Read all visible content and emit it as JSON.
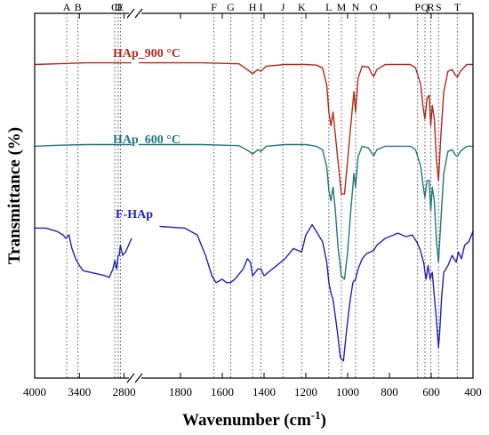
{
  "chart_data": {
    "type": "line",
    "title": "",
    "xlabel": "Wavenumber (cm",
    "xlabel_sup": "-1",
    "xlabel_close": ")",
    "ylabel": "Transmittance (%)",
    "x_axis": "reversed, broken between 2700 and 2000 cm-1",
    "x_segments": [
      {
        "from": 4000,
        "to": 2700,
        "ticks": [
          4000,
          3400,
          2800
        ],
        "tick_labels": [
          "4000",
          "3400",
          "2800"
        ]
      },
      {
        "from": 2000,
        "to": 400,
        "ticks": [
          1800,
          1600,
          1400,
          1200,
          1000,
          800,
          600,
          400
        ],
        "tick_labels": [
          "1800",
          "1600",
          "1400",
          "1200",
          "1000",
          "800",
          "600",
          "400"
        ]
      }
    ],
    "y_ticks_labeled": false,
    "grid": false,
    "legend": "inline labels above each curve",
    "bands": [
      {
        "label": "A",
        "x": 3570
      },
      {
        "label": "B",
        "x": 3420
      },
      {
        "label": "C",
        "x": 2925
      },
      {
        "label": "D",
        "x": 2880
      },
      {
        "label": "E",
        "x": 2850
      },
      {
        "label": "F",
        "x": 1640
      },
      {
        "label": "G",
        "x": 1560
      },
      {
        "label": "H",
        "x": 1455
      },
      {
        "label": "I",
        "x": 1415
      },
      {
        "label": "J",
        "x": 1310
      },
      {
        "label": "K",
        "x": 1220
      },
      {
        "label": "L",
        "x": 1090
      },
      {
        "label": "M",
        "x": 1030
      },
      {
        "label": "N",
        "x": 962
      },
      {
        "label": "O",
        "x": 875
      },
      {
        "label": "P",
        "x": 665
      },
      {
        "label": "Q",
        "x": 630
      },
      {
        "label": "R",
        "x": 602
      },
      {
        "label": "S",
        "x": 565
      },
      {
        "label": "T",
        "x": 475
      }
    ],
    "series": [
      {
        "name": "HAp_900 °C",
        "color": "#b22a1e",
        "points": [
          [
            4000,
            80
          ],
          [
            3700,
            80.2
          ],
          [
            3300,
            80.5
          ],
          [
            3000,
            80.5
          ],
          [
            2700,
            80.5
          ],
          [
            2000,
            80.5
          ],
          [
            1700,
            80.5
          ],
          [
            1520,
            80.2
          ],
          [
            1470,
            78
          ],
          [
            1455,
            77.3
          ],
          [
            1430,
            78.5
          ],
          [
            1415,
            78
          ],
          [
            1390,
            79.5
          ],
          [
            1300,
            80
          ],
          [
            1200,
            80
          ],
          [
            1150,
            79.8
          ],
          [
            1120,
            79
          ],
          [
            1100,
            74
          ],
          [
            1090,
            66
          ],
          [
            1080,
            62
          ],
          [
            1070,
            66
          ],
          [
            1060,
            60
          ],
          [
            1040,
            48
          ],
          [
            1030,
            42
          ],
          [
            1015,
            42
          ],
          [
            1000,
            52
          ],
          [
            985,
            62
          ],
          [
            970,
            72
          ],
          [
            962,
            66
          ],
          [
            950,
            76
          ],
          [
            930,
            79.5
          ],
          [
            900,
            79.2
          ],
          [
            885,
            77.3
          ],
          [
            875,
            76.5
          ],
          [
            860,
            78.5
          ],
          [
            820,
            80
          ],
          [
            700,
            80
          ],
          [
            675,
            79
          ],
          [
            650,
            74
          ],
          [
            640,
            68
          ],
          [
            630,
            64
          ],
          [
            620,
            70
          ],
          [
            610,
            71
          ],
          [
            602,
            62
          ],
          [
            595,
            68
          ],
          [
            585,
            64
          ],
          [
            575,
            52
          ],
          [
            565,
            46
          ],
          [
            555,
            58
          ],
          [
            540,
            72
          ],
          [
            520,
            78
          ],
          [
            500,
            78.5
          ],
          [
            485,
            77
          ],
          [
            475,
            76.3
          ],
          [
            460,
            78
          ],
          [
            430,
            80
          ],
          [
            400,
            80
          ]
        ]
      },
      {
        "name": "HAp_600 °C",
        "color": "#22777a",
        "points": [
          [
            4000,
            56
          ],
          [
            3700,
            56.3
          ],
          [
            3300,
            56.5
          ],
          [
            3000,
            56.5
          ],
          [
            2700,
            56.5
          ],
          [
            2000,
            56.5
          ],
          [
            1700,
            56.5
          ],
          [
            1520,
            56.2
          ],
          [
            1470,
            54.5
          ],
          [
            1455,
            53.7
          ],
          [
            1430,
            55
          ],
          [
            1415,
            54.5
          ],
          [
            1390,
            56
          ],
          [
            1300,
            56.5
          ],
          [
            1200,
            56.5
          ],
          [
            1150,
            56
          ],
          [
            1120,
            55
          ],
          [
            1100,
            50
          ],
          [
            1090,
            43
          ],
          [
            1080,
            40
          ],
          [
            1070,
            44
          ],
          [
            1060,
            38
          ],
          [
            1045,
            26
          ],
          [
            1030,
            18
          ],
          [
            1015,
            17
          ],
          [
            1000,
            25
          ],
          [
            985,
            37
          ],
          [
            970,
            48
          ],
          [
            962,
            44
          ],
          [
            950,
            53
          ],
          [
            930,
            56
          ],
          [
            900,
            55.5
          ],
          [
            885,
            54
          ],
          [
            875,
            53.2
          ],
          [
            860,
            55
          ],
          [
            820,
            56
          ],
          [
            700,
            56
          ],
          [
            675,
            55
          ],
          [
            650,
            50
          ],
          [
            640,
            45
          ],
          [
            630,
            41
          ],
          [
            620,
            46
          ],
          [
            610,
            46
          ],
          [
            602,
            37
          ],
          [
            595,
            44
          ],
          [
            585,
            40
          ],
          [
            575,
            28
          ],
          [
            565,
            22
          ],
          [
            555,
            33
          ],
          [
            540,
            48
          ],
          [
            520,
            54.5
          ],
          [
            500,
            55
          ],
          [
            485,
            53.5
          ],
          [
            475,
            53
          ],
          [
            460,
            54.5
          ],
          [
            430,
            56
          ],
          [
            400,
            56
          ]
        ]
      },
      {
        "name": "F-HAp",
        "color": "#1f22b8",
        "points": [
          [
            4000,
            32
          ],
          [
            3850,
            32
          ],
          [
            3700,
            31
          ],
          [
            3620,
            30
          ],
          [
            3580,
            29
          ],
          [
            3540,
            30
          ],
          [
            3500,
            26
          ],
          [
            3450,
            23
          ],
          [
            3400,
            21
          ],
          [
            3350,
            19.5
          ],
          [
            3250,
            19
          ],
          [
            3150,
            18.5
          ],
          [
            3050,
            18
          ],
          [
            3000,
            17.5
          ],
          [
            2950,
            20
          ],
          [
            2925,
            22.5
          ],
          [
            2900,
            20
          ],
          [
            2880,
            24
          ],
          [
            2865,
            24
          ],
          [
            2850,
            27
          ],
          [
            2820,
            24
          ],
          [
            2780,
            25
          ],
          [
            2740,
            27
          ],
          [
            2700,
            29
          ],
          [
            1900,
            32.5
          ],
          [
            1780,
            32
          ],
          [
            1720,
            30
          ],
          [
            1680,
            24
          ],
          [
            1650,
            18
          ],
          [
            1630,
            16
          ],
          [
            1600,
            17
          ],
          [
            1580,
            16
          ],
          [
            1560,
            16
          ],
          [
            1540,
            17
          ],
          [
            1500,
            20
          ],
          [
            1480,
            23
          ],
          [
            1465,
            22
          ],
          [
            1455,
            18
          ],
          [
            1430,
            20
          ],
          [
            1415,
            20
          ],
          [
            1400,
            18
          ],
          [
            1380,
            19
          ],
          [
            1340,
            21
          ],
          [
            1300,
            23
          ],
          [
            1260,
            26
          ],
          [
            1220,
            25
          ],
          [
            1200,
            30
          ],
          [
            1170,
            33
          ],
          [
            1150,
            31
          ],
          [
            1120,
            28
          ],
          [
            1100,
            22
          ],
          [
            1090,
            16
          ],
          [
            1080,
            13
          ],
          [
            1070,
            11
          ],
          [
            1050,
            2
          ],
          [
            1035,
            -6
          ],
          [
            1020,
            -7
          ],
          [
            1005,
            2
          ],
          [
            990,
            10
          ],
          [
            975,
            16
          ],
          [
            962,
            17
          ],
          [
            950,
            20
          ],
          [
            930,
            23
          ],
          [
            910,
            24.5
          ],
          [
            890,
            25
          ],
          [
            875,
            25.5
          ],
          [
            860,
            27
          ],
          [
            820,
            29
          ],
          [
            780,
            30
          ],
          [
            760,
            30.5
          ],
          [
            720,
            29.5
          ],
          [
            690,
            30
          ],
          [
            670,
            28
          ],
          [
            655,
            26
          ],
          [
            645,
            24
          ],
          [
            635,
            21.5
          ],
          [
            625,
            17
          ],
          [
            615,
            21
          ],
          [
            605,
            17
          ],
          [
            595,
            19
          ],
          [
            585,
            12
          ],
          [
            575,
            5
          ],
          [
            565,
            -3
          ],
          [
            560,
            1
          ],
          [
            550,
            12
          ],
          [
            540,
            19
          ],
          [
            520,
            21
          ],
          [
            500,
            24
          ],
          [
            480,
            22
          ],
          [
            470,
            25
          ],
          [
            455,
            23
          ],
          [
            440,
            27
          ],
          [
            420,
            28
          ],
          [
            400,
            31
          ]
        ]
      }
    ],
    "ylim": [
      -12,
      95
    ]
  }
}
